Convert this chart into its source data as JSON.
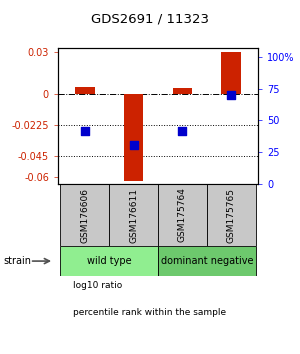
{
  "title": "GDS2691 / 11323",
  "samples": [
    "GSM176606",
    "GSM176611",
    "GSM175764",
    "GSM175765"
  ],
  "log10_ratio": [
    0.005,
    -0.063,
    0.004,
    0.03
  ],
  "percentile_rank": [
    42,
    31,
    42,
    70
  ],
  "groups": [
    {
      "label": "wild type",
      "samples": [
        0,
        1
      ],
      "color": "#90EE90"
    },
    {
      "label": "dominant negative",
      "samples": [
        2,
        3
      ],
      "color": "#6DC96D"
    }
  ],
  "ylim_left": [
    -0.065,
    0.033
  ],
  "ylim_right": [
    0,
    107
  ],
  "yticks_left": [
    0.03,
    0,
    -0.0225,
    -0.045,
    -0.06
  ],
  "yticks_right": [
    100,
    75,
    50,
    25,
    0
  ],
  "ytick_labels_left": [
    "0.03",
    "0",
    "-0.0225",
    "-0.045",
    "-0.06"
  ],
  "ytick_labels_right": [
    "100%",
    "75",
    "50",
    "25",
    "0"
  ],
  "dotted_lines": [
    -0.0225,
    -0.045
  ],
  "bar_color": "#CC2200",
  "dot_color": "#0000CC",
  "bar_width": 0.4,
  "strain_label": "strain",
  "legend_items": [
    {
      "color": "#CC2200",
      "label": "log10 ratio"
    },
    {
      "color": "#0000CC",
      "label": "percentile rank within the sample"
    }
  ]
}
